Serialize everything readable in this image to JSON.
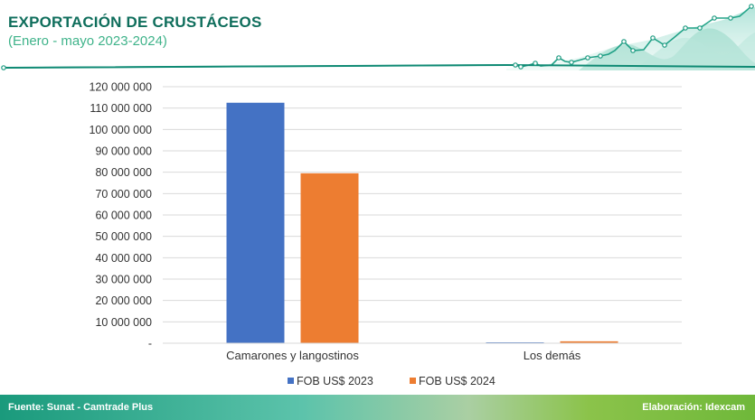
{
  "header": {
    "title": "EXPORTACIÓN DE CRUSTÁCEOS",
    "subtitle": "(Enero - mayo 2023-2024)"
  },
  "footer": {
    "source": "Fuente: Sunat - Camtrade Plus",
    "credit": "Elaboración: Idexcam"
  },
  "colors": {
    "series_2023": "#4472c4",
    "series_2024": "#ed7d31",
    "brand_dark": "#0f6e5c",
    "brand_light": "#3fb38a"
  },
  "chart_data": {
    "type": "bar",
    "categories": [
      "Camarones y langostinos",
      "Los demás"
    ],
    "series": [
      {
        "name": "FOB US$ 2023",
        "values": [
          112500000,
          300000
        ],
        "color": "#4472c4"
      },
      {
        "name": "FOB US$ 2024",
        "values": [
          79500000,
          900000
        ],
        "color": "#ed7d31"
      }
    ],
    "ylim": [
      0,
      120000000
    ],
    "yticks": [
      {
        "value": 0,
        "label": "-"
      },
      {
        "value": 10000000,
        "label": "10 000 000"
      },
      {
        "value": 20000000,
        "label": "20 000 000"
      },
      {
        "value": 30000000,
        "label": "30 000 000"
      },
      {
        "value": 40000000,
        "label": "40 000 000"
      },
      {
        "value": 50000000,
        "label": "50 000 000"
      },
      {
        "value": 60000000,
        "label": "60 000 000"
      },
      {
        "value": 70000000,
        "label": "70 000 000"
      },
      {
        "value": 80000000,
        "label": "80 000 000"
      },
      {
        "value": 90000000,
        "label": "90 000 000"
      },
      {
        "value": 100000000,
        "label": "100 000 000"
      },
      {
        "value": 110000000,
        "label": "110 000 000"
      },
      {
        "value": 120000000,
        "label": "120 000 000"
      }
    ],
    "grid": true,
    "legend_position": "bottom"
  }
}
